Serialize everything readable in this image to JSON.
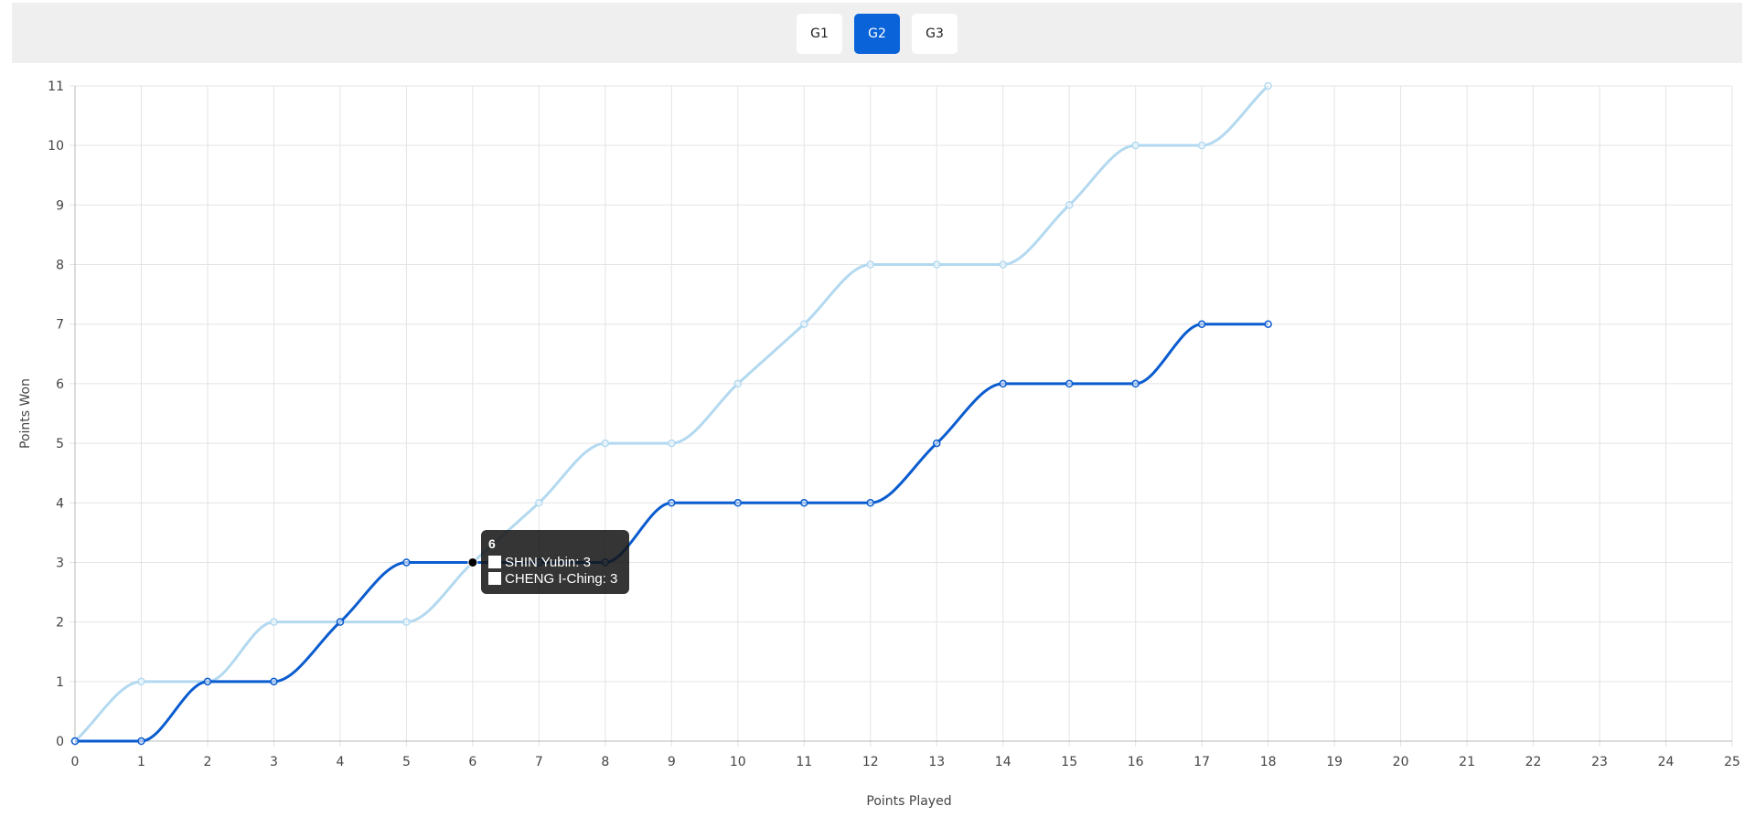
{
  "tabs": [
    {
      "label": "G1",
      "active": false
    },
    {
      "label": "G2",
      "active": true
    },
    {
      "label": "G3",
      "active": false
    }
  ],
  "tooltip": {
    "title": "6",
    "rows": [
      "SHIN Yubin: 3",
      "CHENG I-Ching: 3"
    ]
  },
  "chart_data": {
    "type": "line",
    "xlabel": "Points Played",
    "ylabel": "Points Won",
    "xlim": [
      0,
      25
    ],
    "ylim": [
      0,
      11
    ],
    "x_ticks": [
      0,
      1,
      2,
      3,
      4,
      5,
      6,
      7,
      8,
      9,
      10,
      11,
      12,
      13,
      14,
      15,
      16,
      17,
      18,
      19,
      20,
      21,
      22,
      23,
      24,
      25
    ],
    "y_ticks": [
      0,
      1,
      2,
      3,
      4,
      5,
      6,
      7,
      8,
      9,
      10,
      11
    ],
    "grid": true,
    "series": [
      {
        "name": "SHIN Yubin",
        "color": "#0a5ccf",
        "x": [
          0,
          1,
          2,
          3,
          4,
          5,
          6,
          7,
          8,
          9,
          10,
          11,
          12,
          13,
          14,
          15,
          16,
          17,
          18
        ],
        "values": [
          0,
          0,
          1,
          1,
          2,
          3,
          3,
          3,
          3,
          4,
          4,
          4,
          4,
          5,
          6,
          6,
          6,
          7,
          7
        ]
      },
      {
        "name": "CHENG I-Ching",
        "color": "#b3d9f0",
        "x": [
          0,
          1,
          2,
          3,
          4,
          5,
          6,
          7,
          8,
          9,
          10,
          11,
          12,
          13,
          14,
          15,
          16,
          17,
          18
        ],
        "values": [
          0,
          1,
          1,
          2,
          2,
          2,
          3,
          4,
          5,
          5,
          6,
          7,
          8,
          8,
          8,
          9,
          10,
          10,
          11
        ]
      }
    ],
    "legend": "bottom-left"
  }
}
